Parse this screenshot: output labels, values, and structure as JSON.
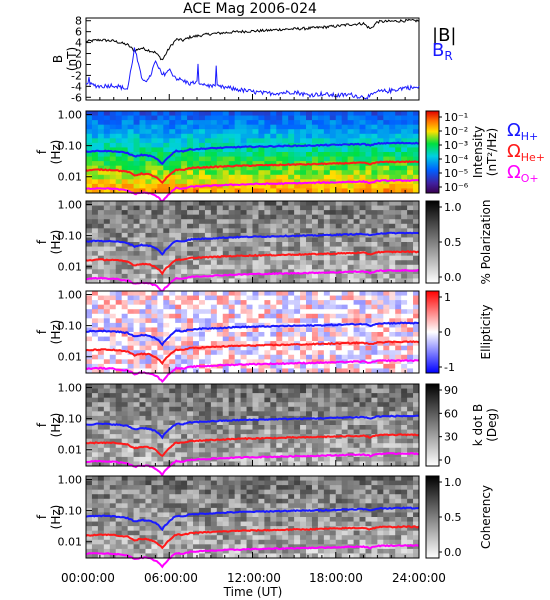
{
  "title": "ACE Mag 2006-024",
  "time_axis": {
    "label": "Time (UT)",
    "ticks": [
      "00:00:00",
      "06:00:00",
      "12:00:00",
      "18:00:00",
      "24:00:00"
    ]
  },
  "legend": {
    "b_abs": "|B|",
    "b_r_main": "B",
    "b_r_sub": "R",
    "omega_h_sub": "H+",
    "omega_he_sub": "He+",
    "omega_o_sub": "O+",
    "omega_symbol": "Ω"
  },
  "colors": {
    "b_abs": "#000000",
    "b_r": "#1a1aff",
    "omega_h": "#1a1aff",
    "omega_he": "#ff1a1a",
    "omega_o": "#ff00ff"
  },
  "panels": [
    {
      "id": "b-field",
      "ylabel_1": "B",
      "ylabel_2": "(nT)",
      "yticks": [
        "8",
        "6",
        "4",
        "2",
        "0",
        "-2",
        "-4",
        "-6"
      ]
    },
    {
      "id": "intensity",
      "ylabel_1": "f",
      "ylabel_2": "(Hz)",
      "yticks": [
        "1.00",
        "0.10",
        "0.01"
      ],
      "colorbar_label_1": "Intensity",
      "colorbar_label_2": "(nT²/Hz)",
      "colorbar_ticks": [
        "10⁻¹",
        "10⁻²",
        "10⁻³",
        "10⁻⁴",
        "10⁻⁵",
        "10⁻⁶"
      ],
      "colormap": "rainbow"
    },
    {
      "id": "polarization",
      "ylabel_1": "f",
      "ylabel_2": "(Hz)",
      "yticks": [
        "1.00",
        "0.10",
        "0.01"
      ],
      "colorbar_label_1": "% Polarization",
      "colorbar_label_2": "",
      "colorbar_ticks": [
        "1.0",
        "0.5",
        "0.0"
      ],
      "colormap": "gray"
    },
    {
      "id": "ellipticity",
      "ylabel_1": "f",
      "ylabel_2": "(Hz)",
      "yticks": [
        "1.00",
        "0.10",
        "0.01"
      ],
      "colorbar_label_1": "Ellipticity",
      "colorbar_label_2": "",
      "colorbar_ticks": [
        "1",
        "0",
        "-1"
      ],
      "colormap": "blue-white-red"
    },
    {
      "id": "k-dot-b",
      "ylabel_1": "f",
      "ylabel_2": "(Hz)",
      "yticks": [
        "1.00",
        "0.10",
        "0.01"
      ],
      "colorbar_label_1": "k dot B",
      "colorbar_label_2": "(Deg)",
      "colorbar_ticks": [
        "90",
        "60",
        "30",
        "0"
      ],
      "colormap": "gray"
    },
    {
      "id": "coherency",
      "ylabel_1": "f",
      "ylabel_2": "(Hz)",
      "yticks": [
        "1.00",
        "0.10",
        "0.01"
      ],
      "colorbar_label_1": "Coherency",
      "colorbar_label_2": "",
      "colorbar_ticks": [
        "1.0",
        "0.5",
        "0.0"
      ],
      "colormap": "gray"
    }
  ],
  "chart_data": {
    "type": "line",
    "title": "ACE Mag 2006-024",
    "xlabel": "Time (UT)",
    "x_hours": [
      0,
      1,
      2,
      3,
      3.5,
      4,
      4.5,
      5,
      5.5,
      6,
      6.5,
      7,
      7.5,
      8,
      9,
      10,
      11,
      12,
      13,
      14,
      15,
      16,
      17,
      18,
      19,
      20,
      20.5,
      21,
      22,
      23,
      24
    ],
    "xlim": [
      0,
      24
    ],
    "b_panel": {
      "ylabel": "B (nT)",
      "ylim": [
        -6.5,
        8.5
      ],
      "series": [
        {
          "name": "|B|",
          "values": [
            4.2,
            4.5,
            4.3,
            3.6,
            2.5,
            3.0,
            2.6,
            2.2,
            0.8,
            3.0,
            4.6,
            4.4,
            5.0,
            5.2,
            5.6,
            5.8,
            6.0,
            6.1,
            6.2,
            6.4,
            6.5,
            6.6,
            6.8,
            7.0,
            7.3,
            7.5,
            6.5,
            7.8,
            7.9,
            8.0,
            8.0
          ]
        },
        {
          "name": "B_R",
          "values": [
            -3.5,
            -4.0,
            -3.8,
            -4.5,
            3.0,
            -2.5,
            -3.0,
            0.5,
            -2.0,
            -1.0,
            -2.5,
            -3.0,
            -3.5,
            -3.2,
            -4.0,
            -4.2,
            -4.6,
            -5.0,
            -5.3,
            -5.2,
            -5.0,
            -5.6,
            -5.4,
            -5.7,
            -5.5,
            -6.0,
            -5.8,
            -5.0,
            -4.8,
            -4.2,
            -4.3
          ]
        }
      ]
    },
    "spectrogram_panels": {
      "ylabel": "f (Hz)",
      "yscale": "log",
      "ylim": [
        0.003,
        1.3
      ],
      "series": [
        {
          "name": "ΩH+",
          "values": [
            0.065,
            0.068,
            0.066,
            0.058,
            0.045,
            0.05,
            0.048,
            0.04,
            0.025,
            0.045,
            0.068,
            0.066,
            0.075,
            0.078,
            0.082,
            0.086,
            0.09,
            0.092,
            0.094,
            0.097,
            0.099,
            0.1,
            0.103,
            0.106,
            0.11,
            0.113,
            0.1,
            0.118,
            0.12,
            0.122,
            0.12
          ]
        },
        {
          "name": "ΩHe+",
          "values": [
            0.016,
            0.017,
            0.0165,
            0.0145,
            0.011,
            0.0125,
            0.012,
            0.01,
            0.0062,
            0.011,
            0.017,
            0.0165,
            0.019,
            0.0195,
            0.0205,
            0.0215,
            0.0225,
            0.023,
            0.0235,
            0.024,
            0.0248,
            0.025,
            0.026,
            0.0265,
            0.0275,
            0.028,
            0.025,
            0.0295,
            0.03,
            0.0305,
            0.03
          ]
        },
        {
          "name": "ΩO+",
          "values": [
            0.0041,
            0.0043,
            0.0041,
            0.0036,
            0.0028,
            0.0031,
            0.003,
            0.0025,
            0.0016,
            0.0028,
            0.0043,
            0.0041,
            0.0047,
            0.0049,
            0.0051,
            0.0054,
            0.0056,
            0.0058,
            0.0059,
            0.006,
            0.0062,
            0.0063,
            0.0065,
            0.0066,
            0.0069,
            0.007,
            0.0063,
            0.0074,
            0.0075,
            0.0076,
            0.0075
          ]
        }
      ]
    }
  }
}
